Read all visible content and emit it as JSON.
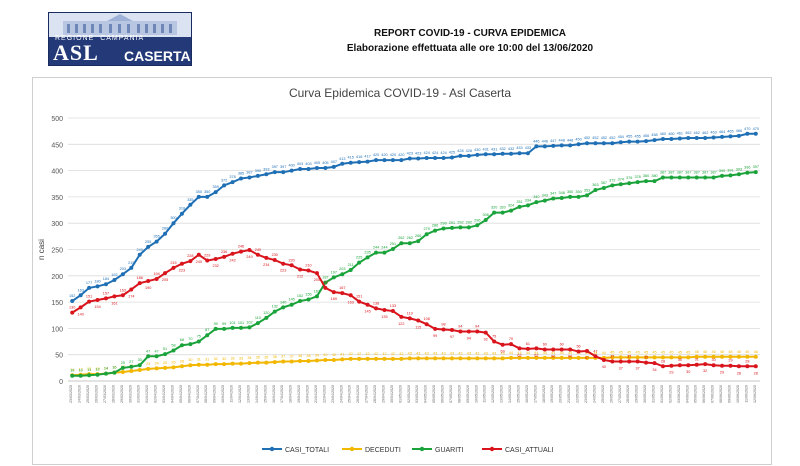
{
  "header": {
    "logo_regione": "REGIONE",
    "logo_campania": "CAMPANIA",
    "logo_asl": "ASL",
    "logo_caserta": "CASERTA",
    "title": "REPORT COVID-19 - CURVA EPIDEMICA",
    "subtitle": "Elaborazione effettuata alle ore 10:00 del 13/06/2020"
  },
  "chart_data": {
    "type": "line",
    "title": "Curva Epidemica COVID-19 - Asl Caserta",
    "xlabel": "",
    "ylabel": "n casi",
    "ylim": [
      0,
      500
    ],
    "yticks": [
      0,
      50,
      100,
      150,
      200,
      250,
      300,
      350,
      400,
      450,
      500
    ],
    "grid": true,
    "legend_position": "bottom",
    "categories": [
      "23/03/2020",
      "24/03/2020",
      "25/03/2020",
      "26/03/2020",
      "27/03/2020",
      "28/03/2020",
      "29/03/2020",
      "30/03/2020",
      "31/03/2020",
      "01/04/2020",
      "02/04/2020",
      "03/04/2020",
      "04/04/2020",
      "05/04/2020",
      "06/04/2020",
      "07/04/2020",
      "08/04/2020",
      "09/04/2020",
      "10/04/2020",
      "11/04/2020",
      "12/04/2020",
      "13/04/2020",
      "14/04/2020",
      "15/04/2020",
      "16/04/2020",
      "17/04/2020",
      "18/04/2020",
      "19/04/2020",
      "20/04/2020",
      "21/04/2020",
      "22/04/2020",
      "23/04/2020",
      "24/04/2020",
      "25/04/2020",
      "26/04/2020",
      "27/04/2020",
      "28/04/2020",
      "29/04/2020",
      "30/04/2020",
      "01/05/2020",
      "02/05/2020",
      "03/05/2020",
      "04/05/2020",
      "05/05/2020",
      "06/05/2020",
      "07/05/2020",
      "08/05/2020",
      "09/05/2020",
      "10/05/2020",
      "11/05/2020",
      "12/05/2020",
      "13/05/2020",
      "14/05/2020",
      "15/05/2020",
      "16/05/2020",
      "17/05/2020",
      "18/05/2020",
      "19/05/2020",
      "20/05/2020",
      "21/05/2020",
      "22/05/2020",
      "23/05/2020",
      "24/05/2020",
      "25/05/2020",
      "26/05/2020",
      "27/05/2020",
      "28/05/2020",
      "29/05/2020",
      "30/05/2020",
      "31/05/2020",
      "01/06/2020",
      "02/06/2020",
      "03/06/2020",
      "04/06/2020",
      "05/06/2020",
      "06/06/2020",
      "07/06/2020",
      "08/06/2020",
      "09/06/2020",
      "10/06/2020",
      "11/06/2020",
      "12/06/2020"
    ],
    "series": [
      {
        "name": "CASI_TOTALI",
        "color": "#1f6fb5",
        "values": [
          152,
          163,
          177,
          180,
          184,
          192,
          203,
          215,
          240,
          255,
          265,
          280,
          300,
          318,
          335,
          350,
          350,
          359,
          372,
          378,
          385,
          387,
          390,
          393,
          397,
          397,
          400,
          403,
          403,
          405,
          405,
          407,
          413,
          415,
          416,
          417,
          420,
          420,
          420,
          420,
          423,
          423,
          424,
          424,
          424,
          425,
          428,
          428,
          430,
          431,
          431,
          432,
          432,
          433,
          433,
          446,
          446,
          447,
          448,
          448,
          450,
          452,
          452,
          452,
          452,
          454,
          455,
          455,
          456,
          458,
          460,
          460,
          461,
          462,
          462,
          462,
          463,
          464,
          465,
          466,
          470,
          470
        ]
      },
      {
        "name": "DECEDUTI",
        "color": "#f2b700",
        "values": [
          11,
          12,
          13,
          13,
          14,
          16,
          17,
          19,
          21,
          23,
          24,
          25,
          26,
          28,
          30,
          31,
          31,
          32,
          32,
          33,
          33,
          34,
          35,
          35,
          36,
          37,
          37,
          38,
          38,
          39,
          40,
          40,
          41,
          42,
          42,
          42,
          42,
          42,
          42,
          42,
          43,
          43,
          43,
          43,
          43,
          43,
          43,
          43,
          43,
          43,
          43,
          43,
          44,
          44,
          44,
          44,
          44,
          44,
          44,
          44,
          44,
          44,
          44,
          44,
          45,
          45,
          45,
          45,
          45,
          45,
          45,
          45,
          45,
          45,
          46,
          46,
          46,
          46,
          46,
          46,
          46,
          46
        ]
      },
      {
        "name": "GUARITI",
        "color": "#1aa33a",
        "values": [
          10,
          10,
          11,
          12,
          14,
          16,
          25,
          27,
          30,
          47,
          47,
          51,
          58,
          68,
          70,
          75,
          87,
          99,
          99,
          101,
          101,
          102,
          110,
          120,
          132,
          140,
          145,
          152,
          155,
          161,
          187,
          197,
          203,
          211,
          225,
          235,
          244,
          244,
          251,
          262,
          262,
          266,
          279,
          286,
          290,
          291,
          292,
          292,
          296,
          306,
          320,
          320,
          324,
          331,
          334,
          340,
          343,
          347,
          348,
          350,
          350,
          353,
          363,
          367,
          372,
          374,
          376,
          378,
          380,
          380,
          387,
          387,
          387,
          387,
          387,
          387,
          387,
          390,
          391,
          393,
          396,
          397
        ]
      },
      {
        "name": "CASI_ATTUALI",
        "color": "#d9141c",
        "values": [
          130,
          140,
          151,
          154,
          157,
          161,
          163,
          174,
          186,
          190,
          194,
          205,
          215,
          223,
          228,
          240,
          229,
          232,
          236,
          242,
          246,
          249,
          240,
          234,
          230,
          223,
          220,
          212,
          210,
          205,
          177,
          169,
          167,
          163,
          151,
          145,
          138,
          135,
          133,
          122,
          119,
          115,
          108,
          99,
          98,
          97,
          94,
          94,
          94,
          92,
          75,
          69,
          70,
          62,
          61,
          62,
          60,
          60,
          60,
          60,
          56,
          57,
          47,
          40,
          37,
          37,
          37,
          37,
          35,
          34,
          28,
          29,
          30,
          30,
          31,
          32,
          30,
          29,
          29,
          28,
          28,
          28
        ]
      }
    ],
    "legend": [
      "CASI_TOTALI",
      "DECEDUTI",
      "GUARITI",
      "CASI_ATTUALI"
    ]
  }
}
